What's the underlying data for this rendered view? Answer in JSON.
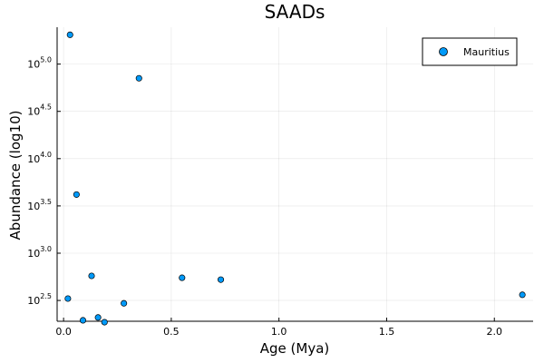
{
  "chart_data": {
    "type": "scatter",
    "title": "SAADs",
    "xlabel": "Age (Mya)",
    "ylabel": "Abundance (log10)",
    "xlim": [
      -0.03,
      2.18
    ],
    "ylim": [
      2.28,
      5.39
    ],
    "y_scale_label": "log10",
    "x_ticks": [
      {
        "value": 0,
        "label": "0.0"
      },
      {
        "value": 0.5,
        "label": "0.5"
      },
      {
        "value": 1.0,
        "label": "1.0"
      },
      {
        "value": 1.5,
        "label": "1.5"
      },
      {
        "value": 2.0,
        "label": "2.0"
      }
    ],
    "y_ticks": [
      {
        "value": 2.5,
        "base": "10",
        "exp": "2.5"
      },
      {
        "value": 3.0,
        "base": "10",
        "exp": "3.0"
      },
      {
        "value": 3.5,
        "base": "10",
        "exp": "3.5"
      },
      {
        "value": 4.0,
        "base": "10",
        "exp": "4.0"
      },
      {
        "value": 4.5,
        "base": "10",
        "exp": "4.5"
      },
      {
        "value": 5.0,
        "base": "10",
        "exp": "5.0"
      }
    ],
    "grid": true,
    "legend_position": "top-right",
    "series": [
      {
        "name": "Mauritius",
        "color": "#009AF9",
        "points": [
          {
            "x": 0.02,
            "y": 2.52
          },
          {
            "x": 0.03,
            "y": 5.31
          },
          {
            "x": 0.06,
            "y": 3.62
          },
          {
            "x": 0.09,
            "y": 2.29
          },
          {
            "x": 0.13,
            "y": 2.76
          },
          {
            "x": 0.16,
            "y": 2.32
          },
          {
            "x": 0.19,
            "y": 2.27
          },
          {
            "x": 0.28,
            "y": 2.47
          },
          {
            "x": 0.35,
            "y": 4.85
          },
          {
            "x": 0.55,
            "y": 2.74
          },
          {
            "x": 0.73,
            "y": 2.72
          },
          {
            "x": 2.13,
            "y": 2.56
          }
        ]
      }
    ]
  }
}
